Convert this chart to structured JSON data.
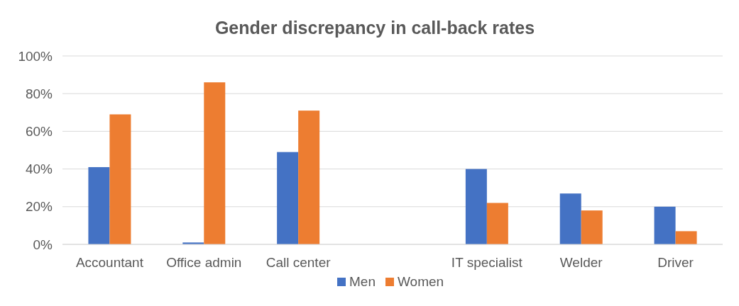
{
  "chart_data": {
    "type": "bar",
    "title": "Gender discrepancy in call-back rates",
    "categories": [
      "Accountant",
      "Office admin",
      "Call center",
      null,
      "IT specialist",
      "Welder",
      "Driver"
    ],
    "series": [
      {
        "name": "Men",
        "color": "#4472c4",
        "values": [
          41,
          1,
          49,
          null,
          40,
          27,
          20
        ]
      },
      {
        "name": "Women",
        "color": "#ed7d31",
        "values": [
          69,
          86,
          71,
          null,
          22,
          18,
          7
        ]
      }
    ],
    "ylim": [
      0,
      100
    ],
    "yticks": [
      {
        "value": 0,
        "label": "0%"
      },
      {
        "value": 20,
        "label": "20%"
      },
      {
        "value": 40,
        "label": "40%"
      },
      {
        "value": 60,
        "label": "60%"
      },
      {
        "value": 80,
        "label": "80%"
      },
      {
        "value": 100,
        "label": "100%"
      }
    ],
    "grid": "y",
    "legend": "bottom"
  }
}
